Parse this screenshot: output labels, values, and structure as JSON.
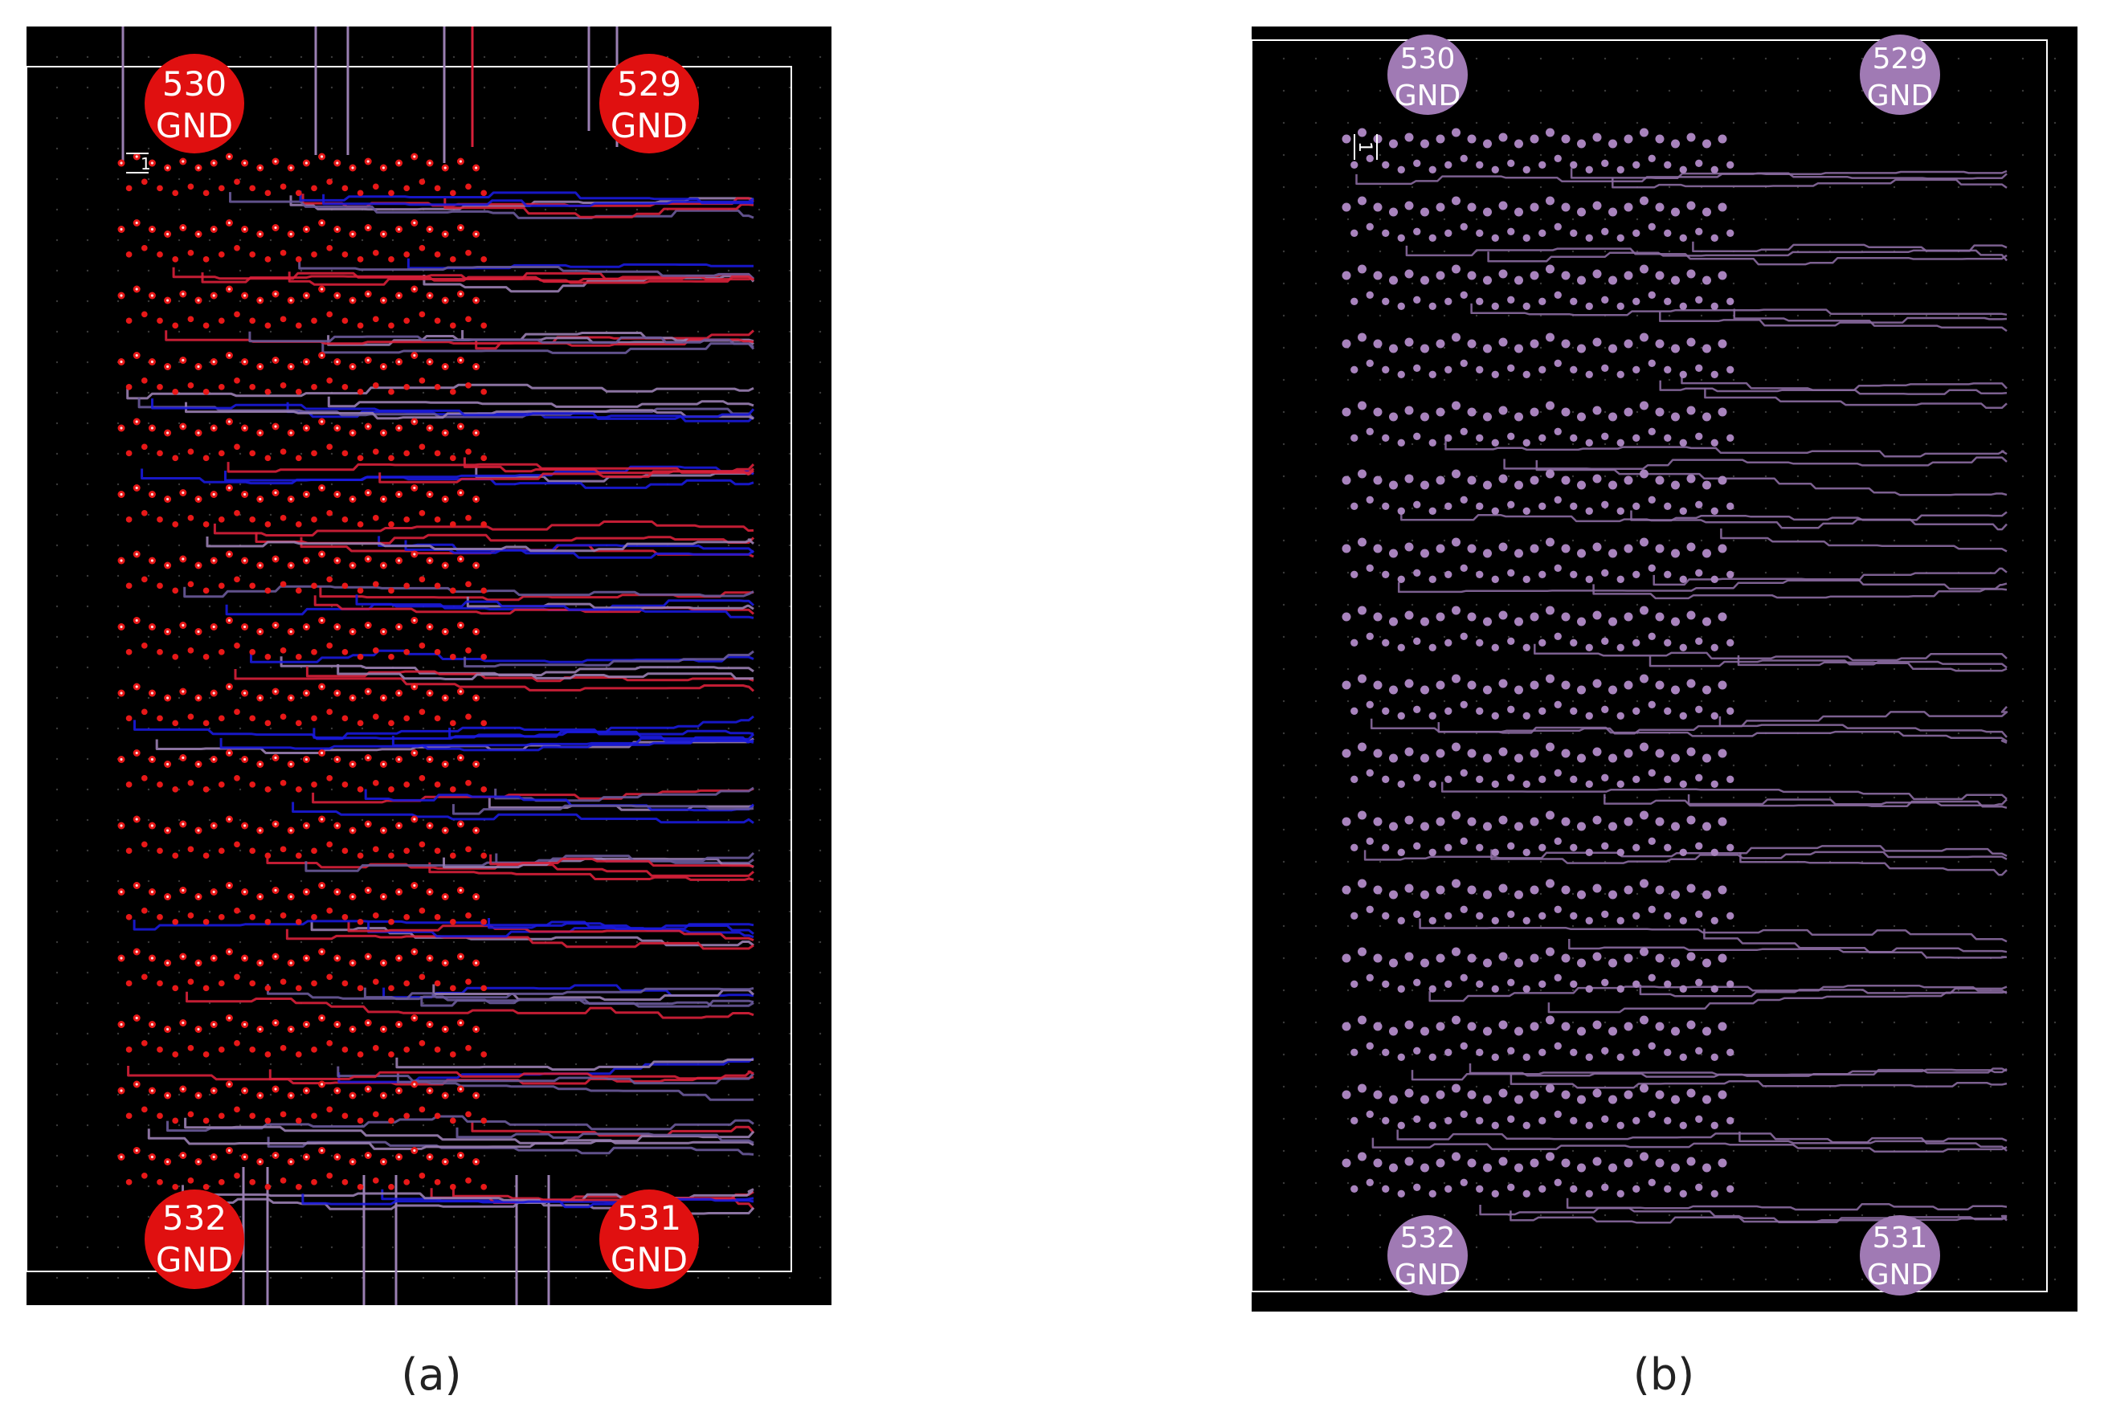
{
  "panels": [
    {
      "id": "a",
      "caption": "(a)",
      "ref_label": "1",
      "pads": [
        {
          "num": "530",
          "net": "GND"
        },
        {
          "num": "529",
          "net": "GND"
        },
        {
          "num": "532",
          "net": "GND"
        },
        {
          "num": "531",
          "net": "GND"
        }
      ],
      "colors": {
        "background": "#000000",
        "pad": "#e01010",
        "via": "#e81818",
        "trace_layers": [
          "#9a7fb2",
          "#1a1adc",
          "#d8203a",
          "#6a5a9a"
        ],
        "outline": "#ffffff"
      }
    },
    {
      "id": "b",
      "caption": "(b)",
      "ref_label": "1",
      "pads": [
        {
          "num": "530",
          "net": "GND"
        },
        {
          "num": "529",
          "net": "GND"
        },
        {
          "num": "532",
          "net": "GND"
        },
        {
          "num": "531",
          "net": "GND"
        }
      ],
      "colors": {
        "background": "#000000",
        "pad": "#a07ab4",
        "via": "#a883bd",
        "trace_layers": [
          "#8a6aa0"
        ],
        "outline": "#ffffff"
      }
    }
  ]
}
